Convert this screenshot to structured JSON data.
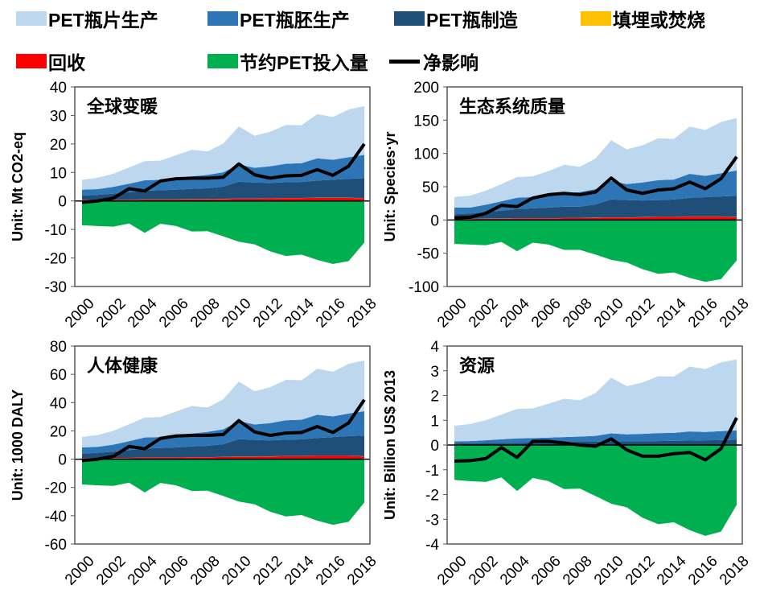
{
  "legend": [
    {
      "key": "flake",
      "label": "PET瓶片生产",
      "color": "#bdd7ee"
    },
    {
      "key": "preform",
      "label": "PET瓶胚生产",
      "color": "#2e75b6"
    },
    {
      "key": "bottle",
      "label": "PET瓶制造",
      "color": "#1f4e79"
    },
    {
      "key": "landfill",
      "label": "填埋或焚烧",
      "color": "#ffc000"
    },
    {
      "key": "recycle",
      "label": "回收",
      "color": "#ff0000"
    },
    {
      "key": "saving",
      "label": "节约PET投入量",
      "color": "#00b050"
    },
    {
      "key": "net",
      "label": "净影响",
      "color": "#000000"
    }
  ],
  "chart_data": [
    {
      "type": "area",
      "title": "全球变暖",
      "ylabel": "Unit: Mt CO2-eq",
      "ylim": [
        -30,
        40
      ],
      "ystep": 10,
      "x": [
        2000,
        2001,
        2002,
        2003,
        2004,
        2005,
        2006,
        2007,
        2008,
        2009,
        2010,
        2011,
        2012,
        2013,
        2014,
        2015,
        2016,
        2017,
        2018
      ],
      "xticks": [
        "2000",
        "2002",
        "2004",
        "2006",
        "2008",
        "2010",
        "2012",
        "2014",
        "2016",
        "2018"
      ],
      "series": {
        "recycle": [
          0.3,
          0.3,
          0.4,
          0.4,
          0.5,
          0.5,
          0.5,
          0.6,
          0.6,
          0.7,
          0.8,
          0.8,
          0.9,
          1.0,
          1.0,
          1.1,
          1.1,
          1.1,
          0.9
        ],
        "landfill": [
          0.05,
          0.05,
          0.05,
          0.05,
          0.05,
          0.05,
          0.05,
          0.05,
          0.05,
          0.05,
          0.05,
          0.05,
          0.05,
          0.05,
          0.05,
          0.05,
          0.05,
          0.05,
          0.05
        ],
        "bottle": [
          1.5,
          1.8,
          2.1,
          2.6,
          3.0,
          3.2,
          3.4,
          3.6,
          3.8,
          4.3,
          5.9,
          5.6,
          5.4,
          5.5,
          5.6,
          6.0,
          6.3,
          6.6,
          7.0
        ],
        "preform": [
          2.1,
          2.0,
          2.4,
          3.0,
          3.7,
          3.7,
          4.2,
          4.4,
          4.7,
          5.0,
          6.1,
          5.2,
          5.8,
          6.5,
          6.6,
          7.8,
          7.0,
          7.6,
          8.2
        ],
        "flake": [
          3.5,
          4.0,
          4.6,
          5.7,
          6.7,
          6.7,
          7.9,
          9.3,
          8.2,
          10.1,
          13.3,
          11.2,
          12.1,
          13.6,
          13.3,
          15.5,
          15.0,
          16.7,
          17.1
        ],
        "saving": [
          -8.5,
          -8.8,
          -9.0,
          -7.9,
          -11.2,
          -8.0,
          -8.8,
          -10.7,
          -10.6,
          -12.4,
          -14.3,
          -15.2,
          -17.7,
          -19.3,
          -18.8,
          -20.7,
          -22.1,
          -21.1,
          -14.6
        ],
        "net": [
          -0.5,
          0,
          1,
          4.3,
          3.5,
          7,
          7.8,
          8,
          8,
          8.3,
          13,
          9.2,
          8,
          8.8,
          9,
          11,
          9,
          12.2,
          20
        ]
      }
    },
    {
      "type": "area",
      "title": "生态系统质量",
      "ylabel": "Unit: Species·yr",
      "ylim": [
        -100,
        200
      ],
      "ystep": 50,
      "x": [
        2000,
        2001,
        2002,
        2003,
        2004,
        2005,
        2006,
        2007,
        2008,
        2009,
        2010,
        2011,
        2012,
        2013,
        2014,
        2015,
        2016,
        2017,
        2018
      ],
      "xticks": [
        "2000",
        "2002",
        "2004",
        "2006",
        "2008",
        "2010",
        "2012",
        "2014",
        "2016",
        "2018"
      ],
      "series": {
        "recycle": [
          1.4,
          1.4,
          1.8,
          1.8,
          2.3,
          2.3,
          2.3,
          2.8,
          2.8,
          3.2,
          3.7,
          3.7,
          4.1,
          4.6,
          4.6,
          5.1,
          5.1,
          5.1,
          4.1
        ],
        "landfill": [
          0.2,
          0.2,
          0.2,
          0.2,
          0.2,
          0.2,
          0.2,
          0.2,
          0.2,
          0.2,
          0.2,
          0.2,
          0.2,
          0.2,
          0.2,
          0.2,
          0.2,
          0.2,
          0.2
        ],
        "bottle": [
          7,
          8,
          10,
          12,
          14,
          15,
          16,
          17,
          17,
          20,
          27,
          26,
          25,
          25,
          26,
          28,
          29,
          30,
          32
        ],
        "preform": [
          10,
          9,
          11,
          14,
          17,
          17,
          19,
          20,
          22,
          23,
          28,
          24,
          27,
          30,
          30,
          36,
          32,
          35,
          38
        ],
        "flake": [
          16,
          18,
          21,
          26,
          31,
          31,
          36,
          43,
          38,
          46,
          61,
          52,
          56,
          63,
          61,
          71,
          69,
          77,
          79
        ],
        "saving": [
          -36,
          -37,
          -38,
          -33,
          -47,
          -34,
          -37,
          -45,
          -45,
          -52,
          -60,
          -64,
          -74,
          -81,
          -79,
          -87,
          -93,
          -89,
          -61
        ],
        "net": [
          3,
          4,
          10,
          22,
          20,
          33,
          38,
          40,
          38,
          42,
          63,
          45,
          40,
          45,
          47,
          57,
          47,
          62,
          95
        ]
      }
    },
    {
      "type": "area",
      "title": "人体健康",
      "ylabel": "Unit: 1000 DALY",
      "ylim": [
        -60,
        80
      ],
      "ystep": 20,
      "x": [
        2000,
        2001,
        2002,
        2003,
        2004,
        2005,
        2006,
        2007,
        2008,
        2009,
        2010,
        2011,
        2012,
        2013,
        2014,
        2015,
        2016,
        2017,
        2018
      ],
      "xticks": [
        "2000",
        "2002",
        "2004",
        "2006",
        "2008",
        "2010",
        "2012",
        "2014",
        "2016",
        "2018"
      ],
      "series": {
        "recycle": [
          0.6,
          0.6,
          0.8,
          0.8,
          1.1,
          1.1,
          1.1,
          1.3,
          1.3,
          1.5,
          1.7,
          1.7,
          1.9,
          2.1,
          2.1,
          2.3,
          2.3,
          2.3,
          1.9
        ],
        "landfill": [
          0.1,
          0.1,
          0.1,
          0.1,
          0.1,
          0.1,
          0.1,
          0.1,
          0.1,
          0.1,
          0.1,
          0.1,
          0.1,
          0.1,
          0.1,
          0.1,
          0.1,
          0.1,
          0.1
        ],
        "bottle": [
          3.2,
          3.8,
          4.4,
          5.5,
          6.3,
          6.7,
          7.1,
          7.6,
          8.0,
          9.0,
          12.4,
          11.8,
          11.3,
          11.6,
          11.8,
          12.6,
          13.2,
          13.9,
          14.7
        ],
        "preform": [
          4.4,
          4.2,
          5.0,
          6.3,
          7.8,
          7.8,
          8.8,
          9.2,
          9.9,
          10.5,
          12.8,
          10.9,
          12.2,
          13.7,
          13.9,
          16.4,
          14.7,
          16.0,
          17.2
        ],
        "flake": [
          7.4,
          8.4,
          9.7,
          12.0,
          14.1,
          14.1,
          16.6,
          19.5,
          17.2,
          21.2,
          27.9,
          23.5,
          25.4,
          28.6,
          27.9,
          32.6,
          31.5,
          35.1,
          35.9
        ],
        "saving": [
          -17.9,
          -18.5,
          -18.9,
          -16.6,
          -23.5,
          -16.8,
          -18.5,
          -22.5,
          -22.3,
          -26.0,
          -30.0,
          -31.9,
          -37.2,
          -40.5,
          -39.5,
          -43.5,
          -46.4,
          -44.3,
          -30.7
        ],
        "net": [
          -1,
          0,
          2,
          9,
          7.4,
          14.7,
          16.4,
          16.8,
          16.8,
          17.4,
          27.3,
          19.3,
          16.8,
          18.5,
          18.9,
          23.1,
          18.9,
          25.6,
          42
        ]
      }
    },
    {
      "type": "area",
      "title": "资源",
      "ylabel": "Unit: Billion US$ 2013",
      "ylim": [
        -4,
        4
      ],
      "ystep": 1,
      "x": [
        2000,
        2001,
        2002,
        2003,
        2004,
        2005,
        2006,
        2007,
        2008,
        2009,
        2010,
        2011,
        2012,
        2013,
        2014,
        2015,
        2016,
        2017,
        2018
      ],
      "xticks": [
        "2000",
        "2002",
        "2004",
        "2006",
        "2008",
        "2010",
        "2012",
        "2014",
        "2016",
        "2018"
      ],
      "series": {
        "recycle": [
          0.01,
          0.01,
          0.01,
          0.01,
          0.01,
          0.01,
          0.01,
          0.01,
          0.01,
          0.01,
          0.01,
          0.01,
          0.01,
          0.01,
          0.01,
          0.01,
          0.01,
          0.01,
          0.01
        ],
        "landfill": [
          0,
          0,
          0,
          0,
          0,
          0,
          0,
          0,
          0,
          0,
          0,
          0,
          0,
          0,
          0,
          0,
          0,
          0,
          0
        ],
        "bottle": [
          0.05,
          0.06,
          0.07,
          0.08,
          0.08,
          0.09,
          0.1,
          0.11,
          0.12,
          0.12,
          0.15,
          0.14,
          0.14,
          0.15,
          0.16,
          0.17,
          0.18,
          0.19,
          0.2
        ],
        "preform": [
          0.09,
          0.09,
          0.11,
          0.14,
          0.18,
          0.18,
          0.19,
          0.2,
          0.21,
          0.24,
          0.31,
          0.28,
          0.3,
          0.32,
          0.32,
          0.37,
          0.34,
          0.36,
          0.38
        ],
        "flake": [
          0.63,
          0.69,
          0.81,
          1.0,
          1.19,
          1.2,
          1.37,
          1.55,
          1.47,
          1.73,
          2.25,
          1.95,
          2.08,
          2.3,
          2.28,
          2.62,
          2.54,
          2.78,
          2.87
        ],
        "saving": [
          -1.41,
          -1.46,
          -1.49,
          -1.31,
          -1.86,
          -1.33,
          -1.46,
          -1.78,
          -1.76,
          -2.06,
          -2.37,
          -2.52,
          -2.94,
          -3.2,
          -3.12,
          -3.44,
          -3.67,
          -3.5,
          -2.42
        ],
        "net": [
          -0.65,
          -0.63,
          -0.55,
          -0.1,
          -0.5,
          0.15,
          0.15,
          0.08,
          0,
          -0.05,
          0.25,
          -0.2,
          -0.45,
          -0.45,
          -0.35,
          -0.3,
          -0.6,
          -0.15,
          1.1
        ]
      }
    }
  ]
}
